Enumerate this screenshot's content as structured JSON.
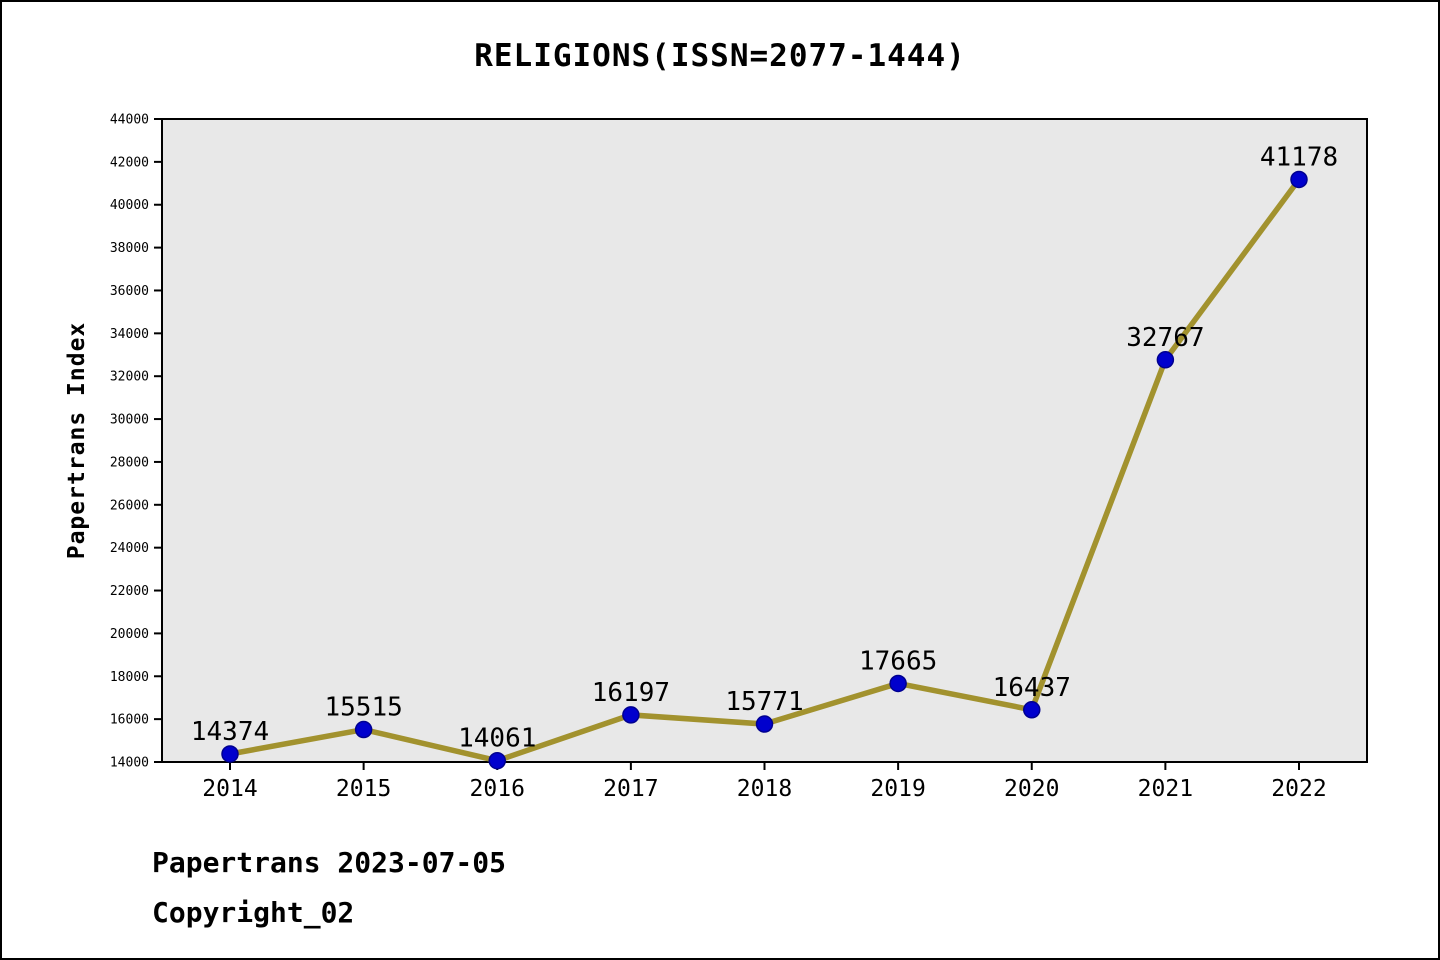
{
  "title": "RELIGIONS(ISSN=2077-1444)",
  "footer": {
    "line1": "Papertrans 2023-07-05",
    "line2": "Copyright_02"
  },
  "chart_data": {
    "type": "line",
    "title": "RELIGIONS(ISSN=2077-1444)",
    "xlabel": "",
    "ylabel": "Papertrans Index",
    "categories": [
      "2014",
      "2015",
      "2016",
      "2017",
      "2018",
      "2019",
      "2020",
      "2021",
      "2022"
    ],
    "values": [
      14374,
      15515,
      14061,
      16197,
      15771,
      17665,
      16437,
      32767,
      41178
    ],
    "ylim": [
      14000,
      44000
    ],
    "ytick_step": 2000,
    "grid": false,
    "legend": "none",
    "colors": {
      "line": "#a2922e",
      "marker_fill": "#0000cd",
      "marker_edge": "#000090",
      "plot_background": "#e8e8e8",
      "axis": "#000000",
      "text": "#000000"
    }
  }
}
